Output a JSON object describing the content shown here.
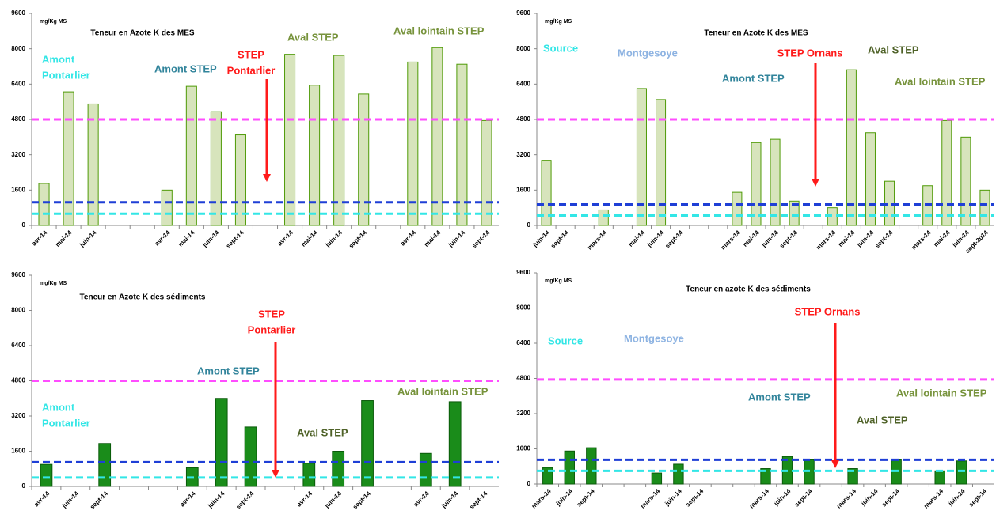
{
  "chart_data": [
    {
      "type": "bar",
      "title": "Teneur en Azote K des MES",
      "y_label": "mg/Kg MS",
      "categories": [
        "avr-14",
        "mai-14",
        "juin-14",
        null,
        null,
        "avr-14",
        "mai-14",
        "juin-14",
        "sept-14",
        null,
        "avr-14",
        "mai-14",
        "juin-14",
        "sept-14",
        null,
        "avr-14",
        "mai-14",
        "juin-14",
        "sept-14"
      ],
      "values": [
        1900,
        6050,
        5500,
        null,
        null,
        1600,
        6300,
        5150,
        4100,
        null,
        7750,
        6350,
        7700,
        5950,
        null,
        7400,
        8050,
        7300,
        4750
      ],
      "color": "#d7e4bc",
      "edge_color": "#4e9a06",
      "ylim": [
        0,
        9600
      ],
      "yticks": [
        0,
        1600,
        3200,
        4800,
        6400,
        8000,
        9600
      ],
      "reference_lines": [
        {
          "value": 4800,
          "color": "#ff4dff"
        },
        {
          "value": 1050,
          "color": "#1f3fd6"
        },
        {
          "value": 530,
          "color": "#33e6e6"
        }
      ],
      "annotations": [
        {
          "lines": [
            "Amont",
            "Pontarlier"
          ],
          "color": "#33e6e6"
        },
        {
          "lines": [
            "Amont STEP"
          ],
          "color": "#31849b"
        },
        {
          "lines": [
            "STEP",
            "Pontarlier"
          ],
          "color": "#ff1a1a"
        },
        {
          "lines": [
            "Aval STEP"
          ],
          "color": "#77933c"
        },
        {
          "lines": [
            "Aval lointain STEP"
          ],
          "color": "#77933c"
        }
      ]
    },
    {
      "type": "bar",
      "title": "Teneur en Azote K des MES",
      "y_label": "mg/Kg MS",
      "categories": [
        "juin-14",
        "sept-14",
        null,
        "mars-14",
        null,
        "mai-14",
        "juin-14",
        "sept-14",
        null,
        null,
        "mars-14",
        "mai-14",
        "juin-14",
        "sept-14",
        null,
        "mars-14",
        "mai-14",
        "juin-14",
        "sept-14",
        null,
        "mars-14",
        "mai-14",
        "juin-14",
        "sept-2014"
      ],
      "values": [
        2950,
        null,
        null,
        700,
        null,
        6200,
        5700,
        null,
        null,
        null,
        1500,
        3750,
        3900,
        1100,
        null,
        800,
        7050,
        4200,
        2000,
        null,
        1800,
        4750,
        4000,
        1600
      ],
      "color": "#d7e4bc",
      "edge_color": "#4e9a06",
      "ylim": [
        0,
        9600
      ],
      "yticks": [
        0,
        1600,
        3200,
        4800,
        6400,
        8000,
        9600
      ],
      "reference_lines": [
        {
          "value": 4800,
          "color": "#ff4dff"
        },
        {
          "value": 950,
          "color": "#1f3fd6"
        },
        {
          "value": 450,
          "color": "#33e6e6"
        }
      ],
      "annotations": [
        {
          "lines": [
            "Source"
          ],
          "color": "#33e6e6"
        },
        {
          "lines": [
            "Montgesoye"
          ],
          "color": "#8db3e2"
        },
        {
          "lines": [
            "Amont STEP"
          ],
          "color": "#31849b"
        },
        {
          "lines": [
            "STEP Ornans"
          ],
          "color": "#ff1a1a"
        },
        {
          "lines": [
            "Aval STEP"
          ],
          "color": "#4f6228"
        },
        {
          "lines": [
            "Aval lointain STEP"
          ],
          "color": "#77933c"
        }
      ]
    },
    {
      "type": "bar",
      "title": "Teneur en Azote K des sédiments",
      "y_label": "mg/Kg MS",
      "categories": [
        "avr-14",
        "juin-14",
        "sept-14",
        null,
        null,
        "avr-14",
        "juin-14",
        "sept-14",
        null,
        "avr-14",
        "juin-14",
        "sept-14",
        null,
        "avr-14",
        "juin-14",
        "sept-14"
      ],
      "values": [
        1000,
        null,
        1950,
        null,
        null,
        850,
        4000,
        2700,
        null,
        1050,
        1600,
        3900,
        null,
        1500,
        3850,
        null
      ],
      "color": "#1a8c1a",
      "edge_color": "#0a5a0a",
      "ylim": [
        0,
        9600
      ],
      "yticks": [
        0,
        1600,
        3200,
        4800,
        6400,
        8000,
        9600
      ],
      "reference_lines": [
        {
          "value": 4800,
          "color": "#ff4dff"
        },
        {
          "value": 1100,
          "color": "#1f3fd6"
        },
        {
          "value": 400,
          "color": "#33e6e6"
        }
      ],
      "annotations": [
        {
          "lines": [
            "STEP",
            "Pontarlier"
          ],
          "color": "#ff1a1a"
        },
        {
          "lines": [
            "Amont STEP"
          ],
          "color": "#31849b"
        },
        {
          "lines": [
            "Amont",
            "Pontarlier"
          ],
          "color": "#33e6e6"
        },
        {
          "lines": [
            "Aval STEP"
          ],
          "color": "#4f6228"
        },
        {
          "lines": [
            "Aval lointain STEP"
          ],
          "color": "#77933c"
        }
      ]
    },
    {
      "type": "bar",
      "title": "Teneur en azote K des sédiments",
      "y_label": "mg/Kg MS",
      "categories": [
        "mars-14",
        "juin-14",
        "sept-14",
        null,
        null,
        "mars-14",
        "juin-14",
        "sept-14",
        null,
        null,
        "mars-14",
        "juin-14",
        "sept-14",
        null,
        "mars-14",
        "juin-14",
        "sept-14",
        null,
        "mars-14",
        "juin-14",
        "sept-14"
      ],
      "values": [
        750,
        1500,
        1650,
        null,
        null,
        500,
        900,
        null,
        null,
        null,
        700,
        1250,
        1100,
        null,
        700,
        null,
        1100,
        null,
        600,
        1050,
        null
      ],
      "color": "#1a8c1a",
      "edge_color": "#0a5a0a",
      "ylim": [
        0,
        9600
      ],
      "yticks": [
        0,
        1600,
        3200,
        4800,
        6400,
        8000,
        9600
      ],
      "reference_lines": [
        {
          "value": 4750,
          "color": "#ff4dff"
        },
        {
          "value": 1100,
          "color": "#1f3fd6"
        },
        {
          "value": 600,
          "color": "#33e6e6"
        }
      ],
      "annotations": [
        {
          "lines": [
            "Source"
          ],
          "color": "#33e6e6"
        },
        {
          "lines": [
            "Montgesoye"
          ],
          "color": "#8db3e2"
        },
        {
          "lines": [
            "STEP Ornans"
          ],
          "color": "#ff1a1a"
        },
        {
          "lines": [
            "Amont STEP"
          ],
          "color": "#31849b"
        },
        {
          "lines": [
            "Aval lointain STEP"
          ],
          "color": "#77933c"
        },
        {
          "lines": [
            "Aval STEP"
          ],
          "color": "#4f6228"
        }
      ]
    }
  ]
}
